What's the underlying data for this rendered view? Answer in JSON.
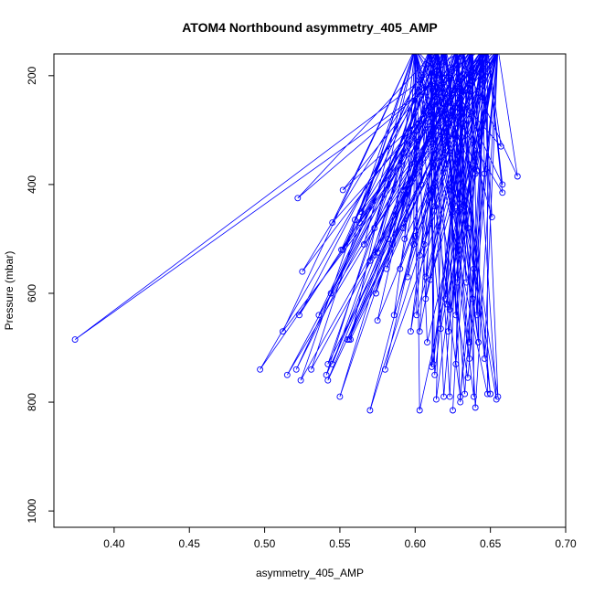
{
  "chart_data": {
    "type": "line",
    "title": "ATOM4 Northbound asymmetry_405_AMP",
    "xlabel": "asymmetry_405_AMP",
    "ylabel": "Pressure (mbar)",
    "xlim": [
      0.36,
      0.7
    ],
    "ylim": [
      1030,
      160
    ],
    "y_inverted": true,
    "x_ticks": [
      0.4,
      0.45,
      0.5,
      0.55,
      0.6,
      0.65,
      0.7
    ],
    "x_tick_labels": [
      "0.40",
      "0.45",
      "0.50",
      "0.55",
      "0.60",
      "0.65",
      "0.70"
    ],
    "y_ticks": [
      200,
      400,
      600,
      800,
      1000
    ],
    "y_tick_labels": [
      "200",
      "400",
      "600",
      "800",
      "1000"
    ],
    "series_color": "#0000ff",
    "x": [
      0.625,
      0.522,
      0.658,
      0.557,
      0.63,
      0.61,
      0.597,
      0.642,
      0.646,
      0.56,
      0.541,
      0.612,
      0.592,
      0.64,
      0.603,
      0.668,
      0.65,
      0.627,
      0.606,
      0.551,
      0.575,
      0.523,
      0.633,
      0.601,
      0.63,
      0.64,
      0.544,
      0.59,
      0.641,
      0.625,
      0.586,
      0.57,
      0.622,
      0.563,
      0.593,
      0.646,
      0.545,
      0.581,
      0.374,
      0.639,
      0.604,
      0.525,
      0.564,
      0.531,
      0.585,
      0.621,
      0.635,
      0.607,
      0.62,
      0.573,
      0.613,
      0.603,
      0.592,
      0.545,
      0.566,
      0.6,
      0.634,
      0.536,
      0.627,
      0.623,
      0.613,
      0.595,
      0.627,
      0.658,
      0.638,
      0.552,
      0.521,
      0.497,
      0.556,
      0.582,
      0.619,
      0.654,
      0.636,
      0.648,
      0.512,
      0.623,
      0.633,
      0.614,
      0.542,
      0.552,
      0.612,
      0.642,
      0.575,
      0.524,
      0.617,
      0.603,
      0.55,
      0.63,
      0.57,
      0.629,
      0.639,
      0.636,
      0.607,
      0.599,
      0.635,
      0.628,
      0.65,
      0.655,
      0.515,
      0.641,
      0.573,
      0.611,
      0.542,
      0.657,
      0.608,
      0.58,
      0.574,
      0.651,
      0.555
    ],
    "y": [
      815,
      425,
      400,
      685,
      790,
      575,
      670,
      690,
      380,
      465,
      750,
      305,
      410,
      380,
      815,
      385,
      785,
      640,
      510,
      520,
      525,
      640,
      785,
      640,
      445,
      810,
      600,
      555,
      640,
      450,
      640,
      540,
      670,
      470,
      500,
      720,
      730,
      555,
      685,
      555,
      400,
      560,
      450,
      740,
      510,
      620,
      480,
      570,
      610,
      480,
      440,
      670,
      480,
      470,
      510,
      495,
      580,
      640,
      730,
      790,
      750,
      570,
      440,
      415,
      610,
      410,
      740,
      740,
      685,
      500,
      790,
      795,
      720,
      785,
      670,
      630,
      440,
      795,
      760,
      520,
      730,
      690,
      650,
      760,
      665,
      530,
      790,
      800,
      815,
      450,
      790,
      690,
      610,
      510,
      755,
      580,
      785,
      790,
      750,
      375,
      530,
      735,
      730,
      330,
      690,
      740,
      600,
      460,
      685
    ]
  }
}
